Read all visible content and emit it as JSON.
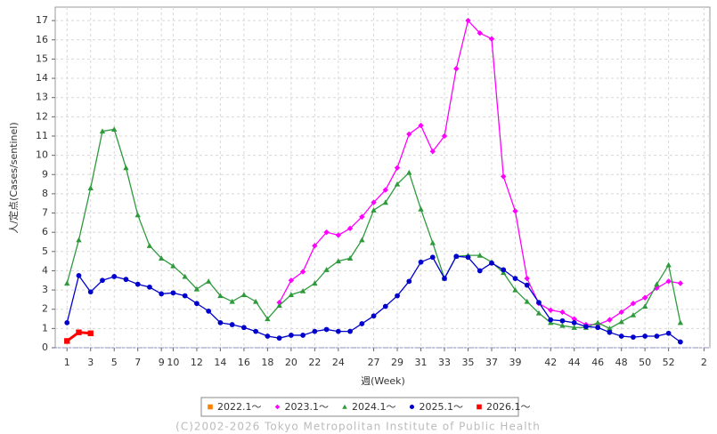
{
  "chart_data": {
    "type": "line",
    "y_label": "人/定点(Cases/sentinel)",
    "x_label": "週(Week)",
    "footer": "(C)2002-2026 Tokyo Metropolitan Institute of Public Health",
    "x": [
      1,
      2,
      3,
      4,
      5,
      6,
      7,
      8,
      9,
      10,
      11,
      12,
      13,
      14,
      15,
      16,
      17,
      18,
      19,
      20,
      21,
      22,
      23,
      24,
      25,
      26,
      27,
      28,
      29,
      30,
      31,
      32,
      33,
      34,
      35,
      36,
      37,
      38,
      39,
      40,
      41,
      42,
      43,
      44,
      45,
      46,
      47,
      48,
      49,
      50,
      51,
      52,
      53
    ],
    "xlim": [
      0,
      55.5
    ],
    "xticks": [
      1,
      3,
      5,
      7,
      9,
      10,
      12,
      14,
      16,
      18,
      20,
      22,
      24,
      27,
      29,
      31,
      33,
      35,
      37,
      39,
      42,
      44,
      46,
      48,
      50,
      52,
      {
        "value": 55,
        "label": "2"
      }
    ],
    "ylim": [
      0,
      17.7
    ],
    "yticks": [
      0,
      1,
      2,
      3,
      4,
      5,
      6,
      7,
      8,
      9,
      10,
      11,
      12,
      13,
      14,
      15,
      16,
      17
    ],
    "grid": true,
    "series": [
      {
        "name": "2022.1～",
        "color": "#ff8000",
        "marker": "square",
        "values": [
          null,
          null,
          null,
          null,
          null,
          null,
          null,
          null,
          null,
          null,
          null,
          null,
          null,
          null,
          null,
          null,
          null,
          null,
          null,
          null,
          null,
          null,
          null,
          null,
          null,
          null,
          null,
          null,
          null,
          null,
          null,
          null,
          null,
          null,
          null,
          null,
          null,
          null,
          null,
          null,
          null,
          null,
          null,
          null,
          null,
          null,
          null,
          null,
          null,
          null,
          null,
          null,
          null
        ]
      },
      {
        "name": "2023.1～",
        "color": "#ff00ff",
        "marker": "diamond",
        "values": [
          null,
          null,
          null,
          null,
          null,
          null,
          null,
          null,
          null,
          null,
          null,
          null,
          null,
          null,
          null,
          null,
          null,
          null,
          2.35,
          3.5,
          3.95,
          5.3,
          6.0,
          5.85,
          6.2,
          6.8,
          7.55,
          8.2,
          9.35,
          11.1,
          11.55,
          10.2,
          11.0,
          14.5,
          17.0,
          16.35,
          16.05,
          8.9,
          7.1,
          3.6,
          2.3,
          1.95,
          1.85,
          1.5,
          1.2,
          1.2,
          1.45,
          1.85,
          2.3,
          2.6,
          3.1,
          3.45,
          3.35
        ]
      },
      {
        "name": "2024.1～",
        "color": "#2e9a3c",
        "marker": "triangle",
        "values": [
          3.35,
          5.6,
          8.3,
          11.25,
          11.35,
          9.35,
          6.9,
          5.3,
          4.65,
          4.25,
          3.7,
          3.05,
          3.45,
          2.7,
          2.4,
          2.75,
          2.4,
          1.5,
          2.2,
          2.75,
          2.95,
          3.35,
          4.05,
          4.5,
          4.65,
          5.6,
          7.15,
          7.55,
          8.5,
          9.1,
          7.2,
          5.45,
          3.6,
          4.75,
          4.8,
          4.8,
          4.45,
          3.9,
          3.0,
          2.4,
          1.8,
          1.3,
          1.15,
          1.05,
          1.05,
          1.3,
          1.0,
          1.35,
          1.7,
          2.15,
          3.3,
          4.3,
          1.3
        ]
      },
      {
        "name": "2025.1～",
        "color": "#0000cc",
        "marker": "circle",
        "values": [
          1.3,
          3.75,
          2.9,
          3.5,
          3.7,
          3.55,
          3.3,
          3.15,
          2.8,
          2.85,
          2.7,
          2.3,
          1.9,
          1.3,
          1.2,
          1.05,
          0.85,
          0.6,
          0.5,
          0.65,
          0.65,
          0.85,
          0.95,
          0.85,
          0.85,
          1.25,
          1.65,
          2.15,
          2.7,
          3.45,
          4.45,
          4.7,
          3.6,
          4.75,
          4.7,
          4.0,
          4.4,
          4.05,
          3.6,
          3.25,
          2.35,
          1.45,
          1.4,
          1.3,
          1.1,
          1.05,
          0.8,
          0.6,
          0.55,
          0.6,
          0.6,
          0.75,
          0.3
        ]
      },
      {
        "name": "2026.1～",
        "color": "#ff0000",
        "marker": "square",
        "values": [
          0.35,
          0.8,
          0.75,
          null,
          null,
          null,
          null,
          null,
          null,
          null,
          null,
          null,
          null,
          null,
          null,
          null,
          null,
          null,
          null,
          null,
          null,
          null,
          null,
          null,
          null,
          null,
          null,
          null,
          null,
          null,
          null,
          null,
          null,
          null,
          null,
          null,
          null,
          null,
          null,
          null,
          null,
          null,
          null,
          null,
          null,
          null,
          null,
          null,
          null,
          null,
          null,
          null,
          null
        ]
      }
    ]
  }
}
